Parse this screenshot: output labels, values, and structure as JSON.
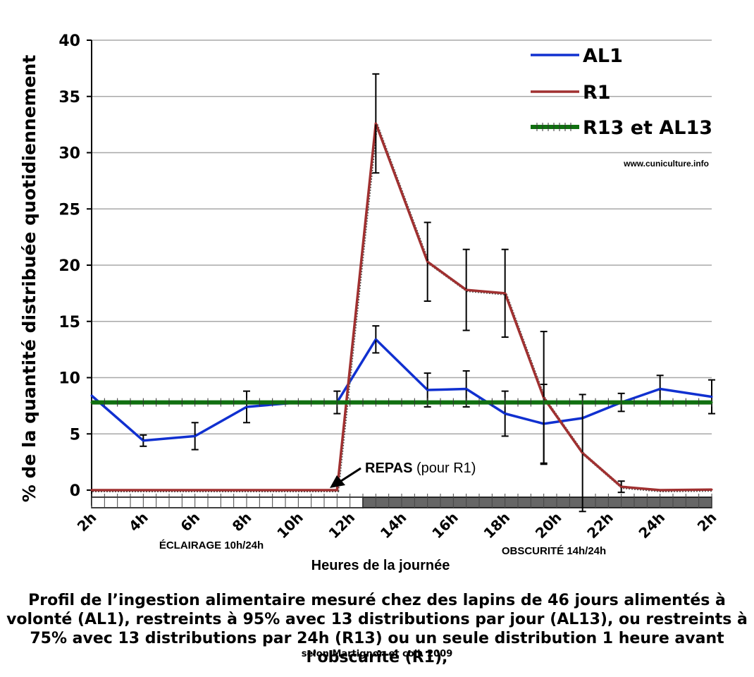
{
  "chart_data": {
    "type": "line",
    "ylabel": "% de la quantité distribuée quotidiennement",
    "xlabel": "Heures de la journée",
    "ylim": [
      0,
      40
    ],
    "yticks": [
      0,
      5,
      10,
      15,
      20,
      25,
      30,
      35,
      40
    ],
    "xticks": [
      "2h",
      "4h",
      "6h",
      "8h",
      "10h",
      "12h",
      "14h",
      "16h",
      "18h",
      "20h",
      "22h",
      "24h",
      "2h"
    ],
    "hour_range": [
      2,
      26
    ],
    "grid": true,
    "legend": "top-right",
    "series": [
      {
        "name": "AL1",
        "color": "#1030d0",
        "x": [
          2.0,
          4.0,
          6.0,
          8.0,
          10.0,
          11.5,
          13.0,
          15.0,
          16.5,
          18.0,
          19.5,
          21.0,
          22.5,
          24.0,
          26.0
        ],
        "values": [
          8.4,
          4.4,
          4.8,
          7.4,
          7.8,
          7.8,
          13.4,
          8.9,
          9.0,
          6.8,
          5.9,
          6.4,
          7.8,
          9.0,
          8.3
        ],
        "errors": [
          null,
          0.5,
          1.2,
          1.4,
          null,
          1.0,
          1.2,
          1.5,
          1.6,
          2.0,
          3.5,
          null,
          0.8,
          1.2,
          1.5
        ]
      },
      {
        "name": "R1",
        "color": "#a03030",
        "x": [
          2.0,
          4.0,
          6.0,
          8.0,
          10.0,
          11.5,
          13.0,
          15.0,
          16.5,
          18.0,
          19.5,
          21.0,
          22.5,
          24.0,
          26.0
        ],
        "values": [
          0,
          0,
          0,
          0,
          0,
          0,
          32.6,
          20.3,
          17.8,
          17.5,
          8.2,
          3.3,
          0.3,
          0,
          0.05
        ],
        "errors": [
          null,
          null,
          null,
          null,
          null,
          null,
          4.4,
          3.5,
          3.6,
          3.9,
          5.9,
          5.2,
          0.5,
          null,
          null
        ]
      },
      {
        "name": "R13 et AL13",
        "color": "#107010",
        "x": [
          2.0,
          26.0
        ],
        "values": [
          7.8,
          7.8
        ],
        "errors": [
          null,
          null
        ]
      }
    ],
    "annotations": {
      "repas_bold": "REPAS",
      "repas_rest": " (pour R1)",
      "eclairage": "ÉCLAIRAGE 10h/24h",
      "obscurite": "OBSCURITÉ 14h/24h",
      "website": "www.cuniculture.info"
    },
    "light_period_end_hour": 12.5
  },
  "caption": {
    "line1": "Profil de l’ingestion alimentaire mesuré chez des lapins de 46 jours alimentés à volonté (AL1), restreints à 95% avec 13 distributions par jour (AL13), ou restreints à 75% avec 13 distributions par 24h (R13) ou un seule distribution 1 heure avant l’obscurité (R1),",
    "line2": "selon Martignon et coll. 2009"
  }
}
